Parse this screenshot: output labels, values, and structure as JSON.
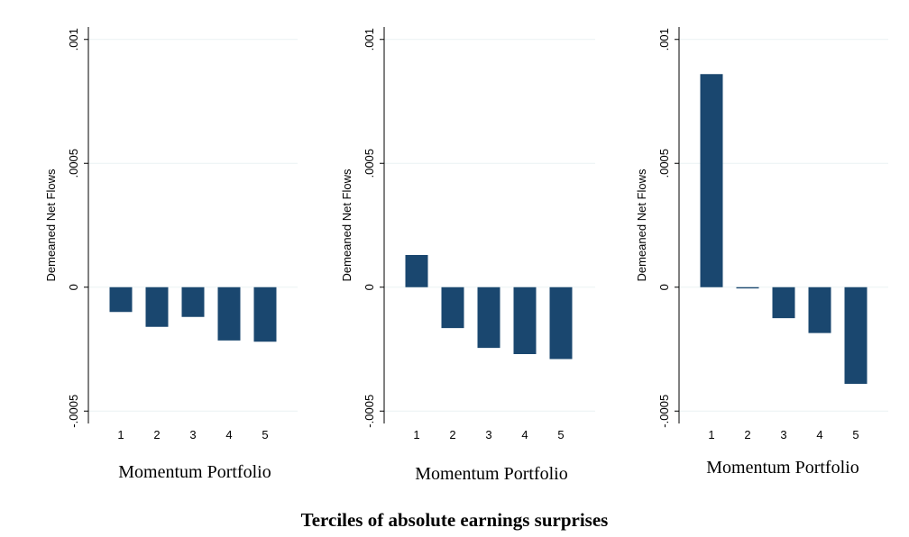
{
  "charts": [
    {
      "type": "bar",
      "y_label": "Demeaned Net Flows",
      "x_label": "Momentum Portfolio",
      "categories": [
        "1",
        "2",
        "3",
        "4",
        "5"
      ],
      "values": [
        -0.0001,
        -0.00016,
        -0.00012,
        -0.000215,
        -0.00022
      ],
      "color": "#1a476f",
      "ylim": [
        -0.00055,
        0.00105
      ],
      "yticks": [
        {
          "value": -0.0005,
          "label": "-.0005"
        },
        0,
        {
          "value": 0.0005,
          "label": ".0005"
        },
        {
          "value": 0.001,
          "label": ".001"
        }
      ],
      "grid": true
    },
    {
      "type": "bar",
      "y_label": "Demeaned Net Flows",
      "x_label": "Momentum Portfolio",
      "categories": [
        "1",
        "2",
        "3",
        "4",
        "5"
      ],
      "values": [
        0.00013,
        -0.000165,
        -0.000245,
        -0.00027,
        -0.00029
      ],
      "color": "#1a476f",
      "ylim": [
        -0.00055,
        0.00105
      ],
      "yticks": [
        {
          "value": -0.0005,
          "label": "-.0005"
        },
        0,
        {
          "value": 0.0005,
          "label": ".0005"
        },
        {
          "value": 0.001,
          "label": ".001"
        }
      ],
      "grid": true
    },
    {
      "type": "bar",
      "y_label": "Demeaned Net Flows",
      "x_label": "Momentum Portfolio",
      "categories": [
        "1",
        "2",
        "3",
        "4",
        "5"
      ],
      "values": [
        0.00086,
        -5e-06,
        -0.000125,
        -0.000185,
        -0.00039
      ],
      "color": "#1a476f",
      "ylim": [
        -0.00055,
        0.00105
      ],
      "yticks": [
        {
          "value": -0.0005,
          "label": "-.0005"
        },
        0,
        {
          "value": 0.0005,
          "label": ".0005"
        },
        {
          "value": 0.001,
          "label": ".001"
        }
      ],
      "grid": true
    }
  ],
  "caption": "Terciles of absolute earnings surprises"
}
